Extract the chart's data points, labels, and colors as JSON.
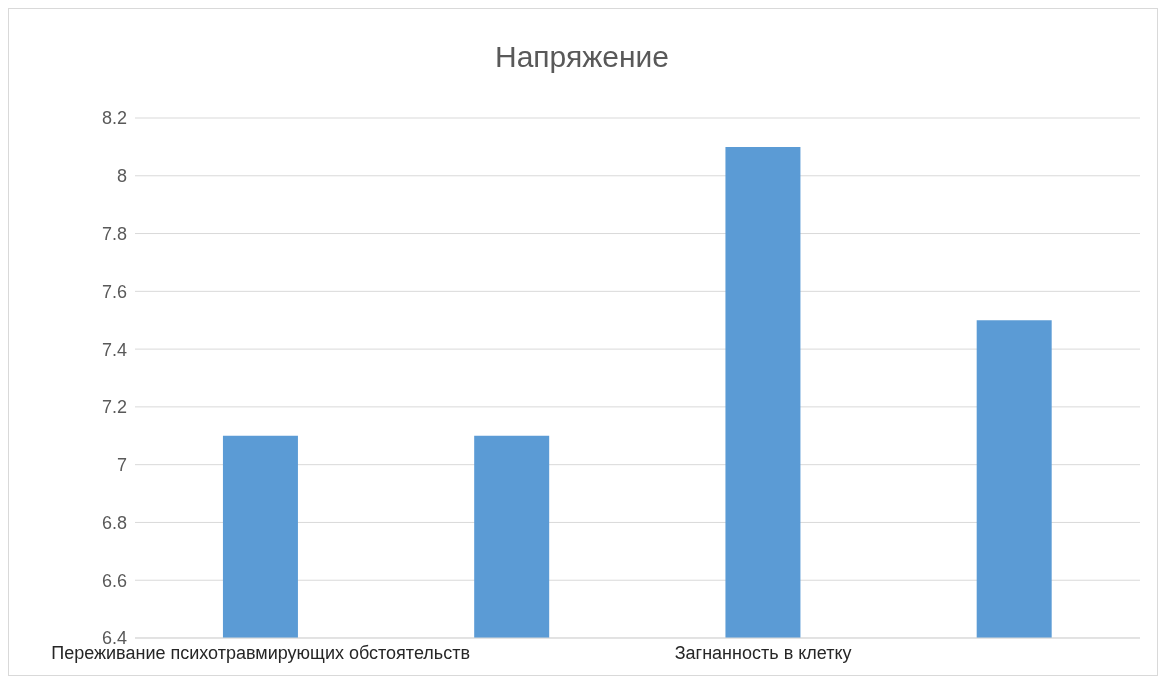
{
  "chart_data": {
    "type": "bar",
    "title": "Напряжение",
    "categories": [
      "Переживание психотравмирующих обстоятельств",
      null,
      "Загнанность в клетку",
      null
    ],
    "values": [
      7.1,
      7.1,
      8.1,
      7.5
    ],
    "color": "#5b9bd5",
    "ylim": [
      6.4,
      8.2
    ],
    "yticks": [
      6.4,
      6.6,
      6.8,
      7,
      7.2,
      7.4,
      7.6,
      7.8,
      8,
      8.2
    ],
    "grid": "y"
  }
}
